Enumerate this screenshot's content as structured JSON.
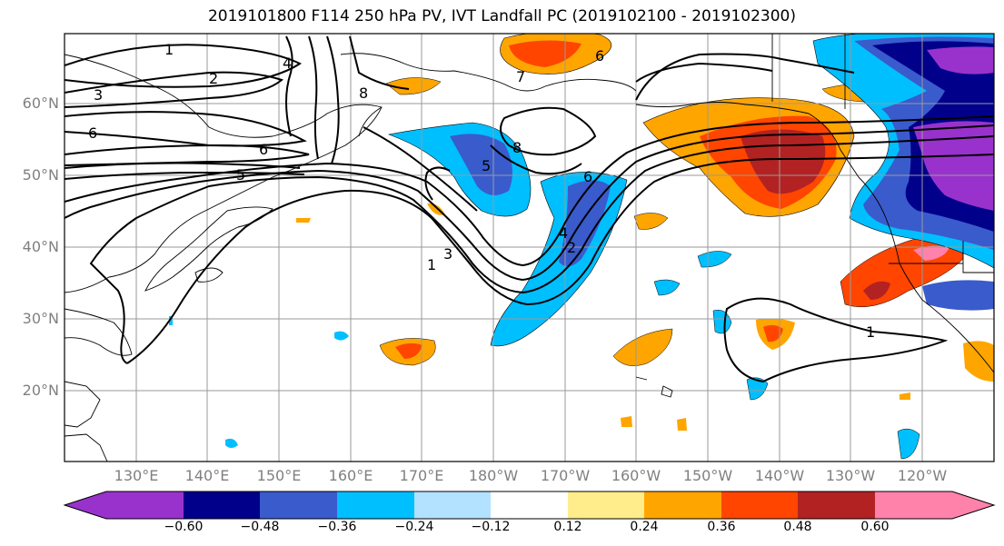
{
  "title": "2019101800 F114 250 hPa PV, IVT Landfall PC (2019102100 - 2019102300)",
  "lat_ticks": [
    "60°N",
    "50°N",
    "40°N",
    "30°N",
    "20°N"
  ],
  "lon_ticks": [
    "130°E",
    "140°E",
    "150°E",
    "160°E",
    "170°E",
    "180°W",
    "170°W",
    "160°W",
    "150°W",
    "140°W",
    "130°W",
    "120°W"
  ],
  "contour_labels": [
    "1",
    "2",
    "3",
    "6",
    "6",
    "5",
    "4",
    "8",
    "7",
    "6",
    "8",
    "5",
    "6",
    "4",
    "2",
    "3",
    "1",
    "1"
  ],
  "colorbar": {
    "tick_labels": [
      "−0.60",
      "−0.48",
      "−0.36",
      "−0.24",
      "−0.12",
      "0.12",
      "0.24",
      "0.36",
      "0.48",
      "0.60"
    ],
    "colors": [
      "#9932cc",
      "#00008b",
      "#3a5bcc",
      "#00bfff",
      "#b2e2ff",
      "#ffffff",
      "#ffec8b",
      "#ffa500",
      "#ff4500",
      "#b22222",
      "#ff82ab"
    ]
  }
}
